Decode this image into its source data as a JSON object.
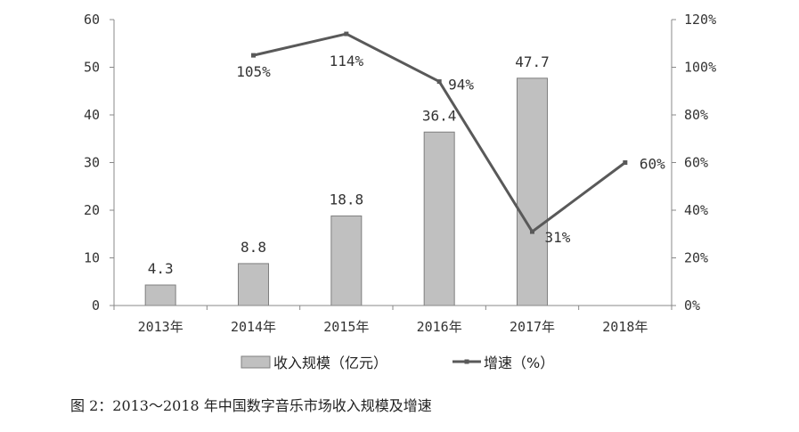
{
  "chart_data": {
    "type": "bar",
    "categories": [
      "2013年",
      "2014年",
      "2015年",
      "2016年",
      "2017年",
      "2018年"
    ],
    "series": [
      {
        "name": "收入规模（亿元）",
        "kind": "bar",
        "axis": "left",
        "values": [
          4.3,
          8.8,
          18.8,
          36.4,
          47.7,
          null
        ],
        "labels": [
          "4.3",
          "8.8",
          "18.8",
          "36.4",
          "47.7",
          ""
        ],
        "color": "#c0c0c0"
      },
      {
        "name": "增速（%）",
        "kind": "line",
        "axis": "right",
        "values": [
          null,
          105,
          114,
          94,
          31,
          60
        ],
        "labels": [
          "",
          "105%",
          "114%",
          "94%",
          "31%",
          "60%"
        ],
        "color": "#595959"
      }
    ],
    "ylim": [
      0,
      60
    ],
    "yticks": [
      "0",
      "10",
      "20",
      "30",
      "40",
      "50",
      "60"
    ],
    "y2lim": [
      0,
      120
    ],
    "y2ticks": [
      "0%",
      "20%",
      "40%",
      "60%",
      "80%",
      "100%",
      "120%"
    ],
    "legend_position": "bottom",
    "grid": false
  },
  "caption": "图 2：2013～2018 年中国数字音乐市场收入规模及增速"
}
